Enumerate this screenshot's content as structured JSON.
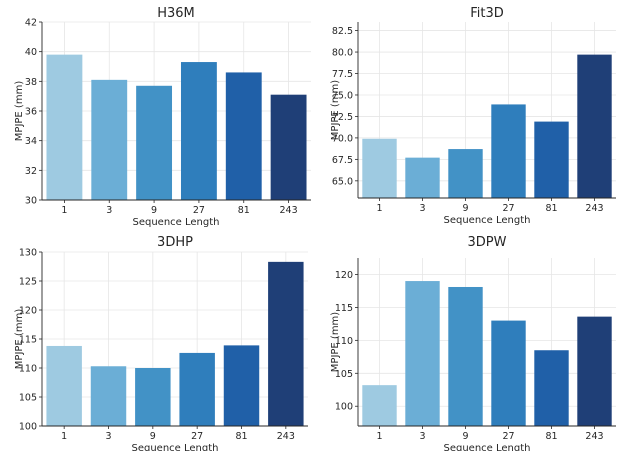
{
  "colors": [
    "#9ecae1",
    "#6baed6",
    "#4292c6",
    "#2f7ebc",
    "#2060a8",
    "#1f3f77"
  ],
  "chart_data": [
    {
      "type": "bar",
      "title": "H36M",
      "xlabel": "Sequence Length",
      "ylabel": "MPJPE (mm)",
      "categories": [
        "1",
        "3",
        "9",
        "27",
        "81",
        "243"
      ],
      "values": [
        39.8,
        38.1,
        37.7,
        39.3,
        38.6,
        37.1
      ],
      "ylim": [
        30,
        42
      ],
      "yticks": [
        "30",
        "32",
        "34",
        "36",
        "38",
        "40",
        "42"
      ],
      "grid": true
    },
    {
      "type": "bar",
      "title": "Fit3D",
      "xlabel": "Sequence Length",
      "ylabel": "MPJPE (mm)",
      "categories": [
        "1",
        "3",
        "9",
        "27",
        "81",
        "243"
      ],
      "values": [
        69.9,
        67.7,
        68.7,
        73.9,
        71.9,
        79.7
      ],
      "ylim": [
        63.0,
        83.5
      ],
      "yticks": [
        "65.0",
        "67.5",
        "70.0",
        "72.5",
        "75.0",
        "77.5",
        "80.0",
        "82.5"
      ],
      "grid": true
    },
    {
      "type": "bar",
      "title": "3DHP",
      "xlabel": "Sequence Length",
      "ylabel": "MPJPE (mm)",
      "categories": [
        "1",
        "3",
        "9",
        "27",
        "81",
        "243"
      ],
      "values": [
        113.8,
        110.3,
        110.0,
        112.6,
        113.9,
        128.3
      ],
      "ylim": [
        100,
        130
      ],
      "yticks": [
        "100",
        "105",
        "110",
        "115",
        "120",
        "125",
        "130"
      ],
      "grid": true
    },
    {
      "type": "bar",
      "title": "3DPW",
      "xlabel": "Sequence Length",
      "ylabel": "MPJPE (mm)",
      "categories": [
        "1",
        "3",
        "9",
        "27",
        "81",
        "243"
      ],
      "values": [
        103.2,
        119.0,
        118.1,
        113.0,
        108.5,
        113.6
      ],
      "ylim": [
        97,
        122.5
      ],
      "yticks": [
        "100",
        "105",
        "110",
        "115",
        "120"
      ],
      "grid": true
    }
  ]
}
